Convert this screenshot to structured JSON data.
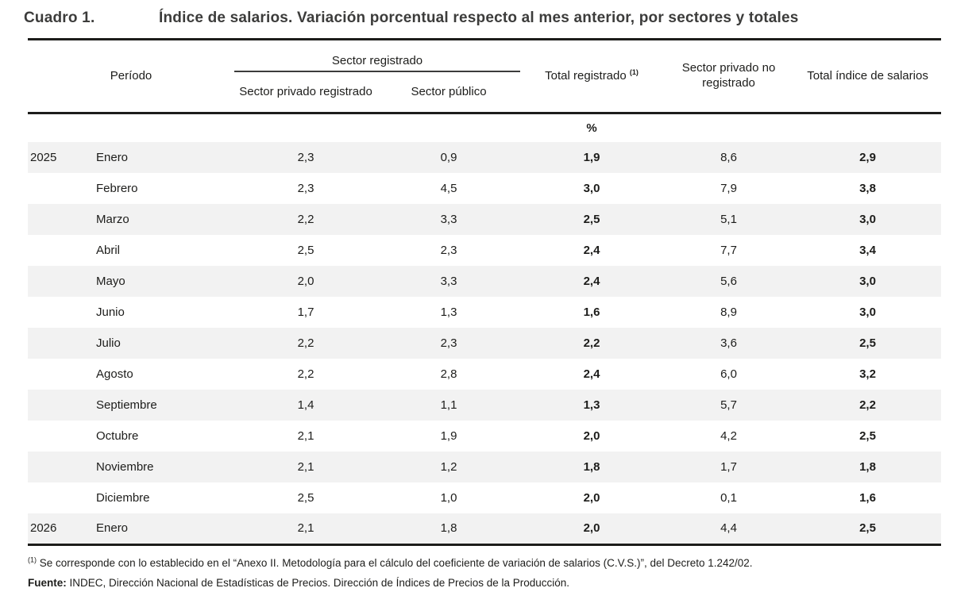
{
  "page": {
    "text_color": "#1d1d1b",
    "stripe_color": "#f2f2f2",
    "rule_color": "#1d1d1b"
  },
  "title": {
    "label": "Cuadro 1.",
    "text": "Índice de salarios. Variación porcentual respecto al mes anterior, por sectores y totales"
  },
  "table": {
    "headers": {
      "period": "Período",
      "group_registered": "Sector registrado",
      "private_registered": "Sector privado registrado",
      "public": "Sector público",
      "total_registered": "Total registrado",
      "total_registered_sup": "(1)",
      "private_unregistered": "Sector privado no registrado",
      "total_index": "Total índice de salarios"
    },
    "unit_label": "%",
    "rows": [
      {
        "year": "2025",
        "month": "Enero",
        "private_registered": "2,3",
        "public": "0,9",
        "total_registered": "1,9",
        "private_unregistered": "8,6",
        "total_index": "2,9"
      },
      {
        "year": "",
        "month": "Febrero",
        "private_registered": "2,3",
        "public": "4,5",
        "total_registered": "3,0",
        "private_unregistered": "7,9",
        "total_index": "3,8"
      },
      {
        "year": "",
        "month": "Marzo",
        "private_registered": "2,2",
        "public": "3,3",
        "total_registered": "2,5",
        "private_unregistered": "5,1",
        "total_index": "3,0"
      },
      {
        "year": "",
        "month": "Abril",
        "private_registered": "2,5",
        "public": "2,3",
        "total_registered": "2,4",
        "private_unregistered": "7,7",
        "total_index": "3,4"
      },
      {
        "year": "",
        "month": "Mayo",
        "private_registered": "2,0",
        "public": "3,3",
        "total_registered": "2,4",
        "private_unregistered": "5,6",
        "total_index": "3,0"
      },
      {
        "year": "",
        "month": "Junio",
        "private_registered": "1,7",
        "public": "1,3",
        "total_registered": "1,6",
        "private_unregistered": "8,9",
        "total_index": "3,0"
      },
      {
        "year": "",
        "month": "Julio",
        "private_registered": "2,2",
        "public": "2,3",
        "total_registered": "2,2",
        "private_unregistered": "3,6",
        "total_index": "2,5"
      },
      {
        "year": "",
        "month": "Agosto",
        "private_registered": "2,2",
        "public": "2,8",
        "total_registered": "2,4",
        "private_unregistered": "6,0",
        "total_index": "3,2"
      },
      {
        "year": "",
        "month": "Septiembre",
        "private_registered": "1,4",
        "public": "1,1",
        "total_registered": "1,3",
        "private_unregistered": "5,7",
        "total_index": "2,2"
      },
      {
        "year": "",
        "month": "Octubre",
        "private_registered": "2,1",
        "public": "1,9",
        "total_registered": "2,0",
        "private_unregistered": "4,2",
        "total_index": "2,5"
      },
      {
        "year": "",
        "month": "Noviembre",
        "private_registered": "2,1",
        "public": "1,2",
        "total_registered": "1,8",
        "private_unregistered": "1,7",
        "total_index": "1,8"
      },
      {
        "year": "",
        "month": "Diciembre",
        "private_registered": "2,5",
        "public": "1,0",
        "total_registered": "2,0",
        "private_unregistered": "0,1",
        "total_index": "1,6"
      },
      {
        "year": "2026",
        "month": "Enero",
        "private_registered": "2,1",
        "public": "1,8",
        "total_registered": "2,0",
        "private_unregistered": "4,4",
        "total_index": "2,5"
      }
    ]
  },
  "footnotes": {
    "note1_sup": "(1)",
    "note1": " Se corresponde con lo establecido en el “Anexo II. Metodología para el cálculo del coeficiente de variación de salarios (C.V.S.)”, del Decreto 1.242/02.",
    "source_label": "Fuente:",
    "source": " INDEC, Dirección Nacional de Estadísticas de Precios. Dirección de Índices de Precios de la Producción."
  }
}
